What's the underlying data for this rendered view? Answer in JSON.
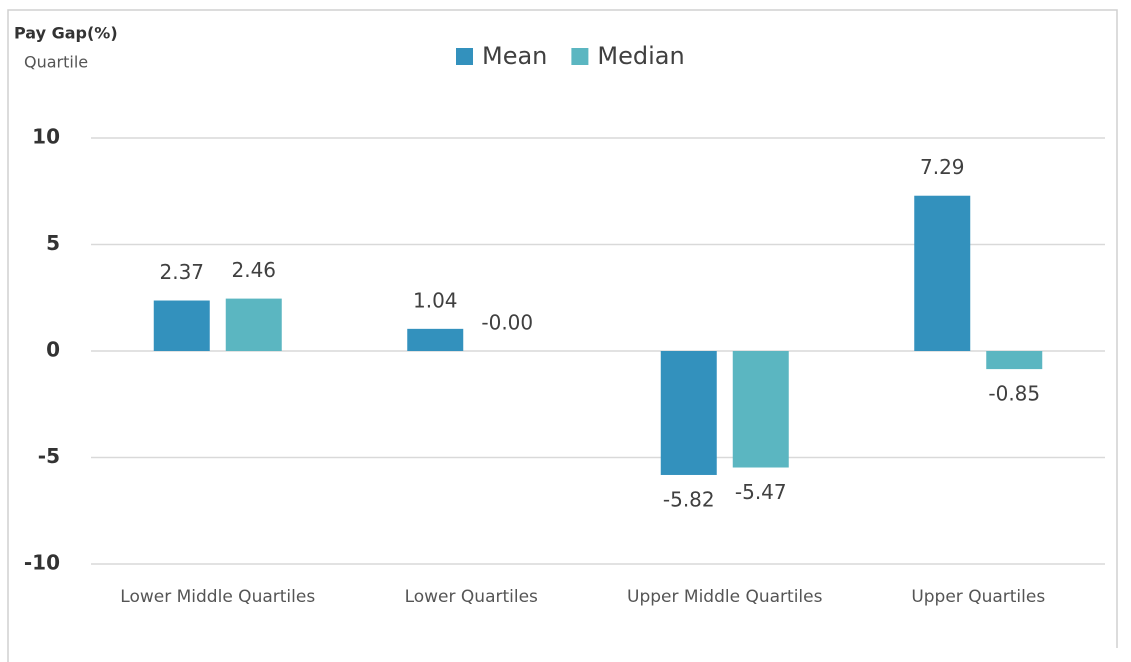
{
  "chart_data": {
    "type": "bar",
    "title": "Pay Gap(%)",
    "subtitle": "Quartile",
    "categories": [
      "Lower Middle Quartiles",
      "Lower Quartiles",
      "Upper Middle Quartiles",
      "Upper Quartiles"
    ],
    "series": [
      {
        "name": "Mean",
        "color": "#3391bd",
        "values": [
          2.37,
          1.04,
          -5.82,
          7.29
        ],
        "value_labels": [
          "2.37",
          "1.04",
          "-5.82",
          "7.29"
        ]
      },
      {
        "name": "Median",
        "color": "#5bb6c1",
        "values": [
          2.46,
          0,
          -5.47,
          -0.85
        ],
        "value_labels": [
          "2.46",
          "-0.00",
          "-5.47",
          "-0.85"
        ]
      }
    ],
    "ylim": [
      -10,
      10
    ],
    "yticks": [
      -10,
      -5,
      0,
      5,
      10
    ],
    "grid": true,
    "legend": "top"
  }
}
